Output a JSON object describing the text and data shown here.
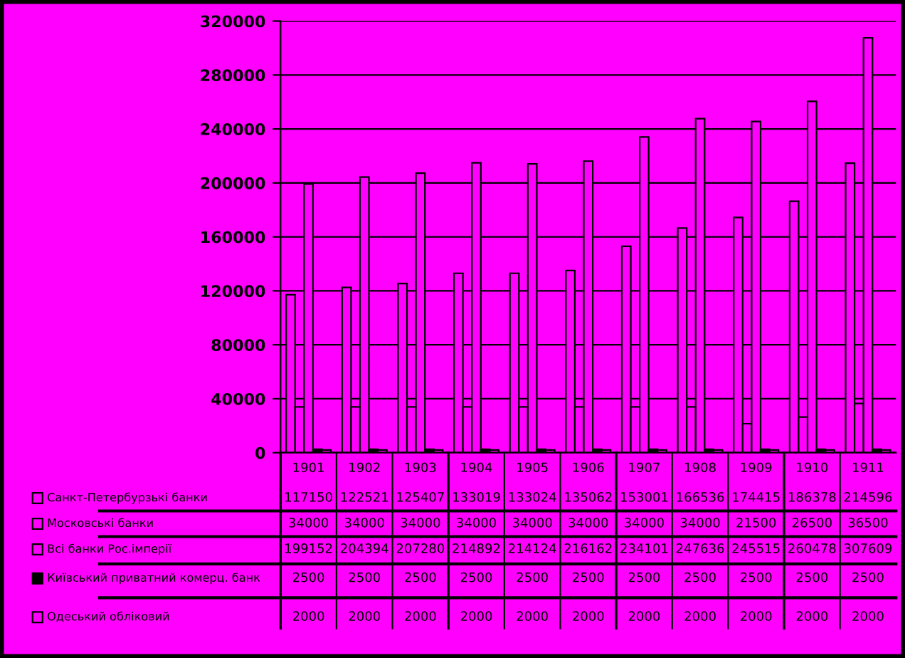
{
  "chart_data": {
    "type": "bar",
    "categories": [
      "1901",
      "1902",
      "1903",
      "1904",
      "1905",
      "1906",
      "1907",
      "1908",
      "1909",
      "1910",
      "1911"
    ],
    "series": [
      {
        "name": "Санкт-Петербурзькі банки",
        "color": "#ff00ff",
        "values": [
          117150,
          122521,
          125407,
          133019,
          133024,
          135062,
          153001,
          166536,
          174415,
          186378,
          214596
        ]
      },
      {
        "name": "Московські банки",
        "color": "#ff00ff",
        "values": [
          34000,
          34000,
          34000,
          34000,
          34000,
          34000,
          34000,
          34000,
          21500,
          26500,
          36500
        ]
      },
      {
        "name": "Всі банки Рос.імперії",
        "color": "#ff00ff",
        "values": [
          199152,
          204394,
          207280,
          214892,
          214124,
          216162,
          234101,
          247636,
          245515,
          260478,
          307609
        ]
      },
      {
        "name": "Київський приватний комерц. банк",
        "color": "#000000",
        "values": [
          2500,
          2500,
          2500,
          2500,
          2500,
          2500,
          2500,
          2500,
          2500,
          2500,
          2500
        ]
      },
      {
        "name": "Одеський обліковий",
        "color": "#ff00ff",
        "values": [
          2000,
          2000,
          2000,
          2000,
          2000,
          2000,
          2000,
          2000,
          2000,
          2000,
          2000
        ]
      }
    ],
    "ylim": [
      0,
      320000
    ],
    "yticks": [
      0,
      40000,
      80000,
      120000,
      160000,
      200000,
      240000,
      280000,
      320000
    ],
    "grid": "y",
    "legend": "bottom",
    "data_labels": true
  }
}
